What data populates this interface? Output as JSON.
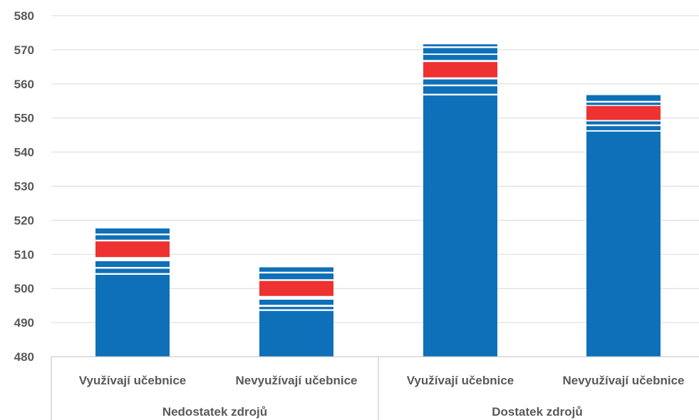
{
  "colors": {
    "bar": "#0E70B8",
    "highlight": "#EE3231",
    "gap": "#FFFFFF",
    "grid": "#D9D9D9",
    "axis": "#BFBFBF",
    "text": "#595959"
  },
  "chart_data": {
    "type": "bar",
    "stacked_bands": true,
    "ylim": [
      480,
      580
    ],
    "yticks": [
      480,
      490,
      500,
      510,
      520,
      530,
      540,
      550,
      560,
      570,
      580
    ],
    "grid": true,
    "groups": [
      {
        "label": "Nedostatek zdrojů",
        "categories": [
          "Využívají učebnice",
          "Nevyužívají učebnice"
        ]
      },
      {
        "label": "Dostatek zdrojů",
        "categories": [
          "Využívají učebnice",
          "Nevyužívají učebnice"
        ]
      }
    ],
    "bars": [
      {
        "category": "Využívají učebnice",
        "group": "Nedostatek zdrojů",
        "base": 504,
        "bands": [
          [
            504.5,
            505.8
          ],
          [
            506.3,
            508.0
          ],
          [
            509.2,
            513.8
          ],
          [
            514.3,
            515.6
          ],
          [
            516.1,
            517.6
          ]
        ],
        "highlight_index": 2
      },
      {
        "category": "Nevyužívají učebnice",
        "group": "Nedostatek zdrojů",
        "base": 493.4,
        "bands": [
          [
            493.9,
            494.6
          ],
          [
            495.2,
            496.7
          ],
          [
            497.8,
            502.2
          ],
          [
            502.7,
            504.4
          ],
          [
            504.9,
            506.2
          ]
        ],
        "highlight_index": 2
      },
      {
        "category": "Využívají učebnice",
        "group": "Dostatek zdrojů",
        "base": 556.6,
        "bands": [
          [
            557.1,
            559.3
          ],
          [
            559.8,
            561.3
          ],
          [
            561.9,
            566.4
          ],
          [
            567.0,
            568.5
          ],
          [
            568.9,
            570.5
          ],
          [
            571.0,
            571.6
          ]
        ],
        "highlight_index": 2
      },
      {
        "category": "Nevyužívají učebnice",
        "group": "Dostatek zdrojů",
        "base": 546,
        "bands": [
          [
            546.4,
            547.6
          ],
          [
            548.1,
            549.0
          ],
          [
            549.4,
            553.5
          ],
          [
            553.8,
            554.5
          ],
          [
            555.0,
            556.7
          ]
        ],
        "highlight_index": 2
      }
    ]
  }
}
